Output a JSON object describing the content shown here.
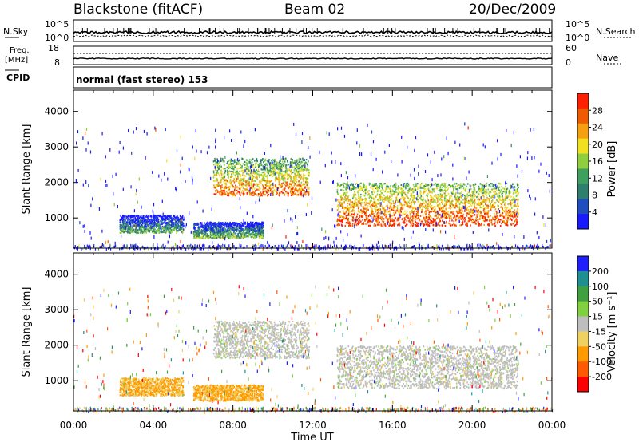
{
  "header": {
    "station": "Blackstone (fitACF)",
    "beam": "Beam 02",
    "date": "20/Dec/2009"
  },
  "nsky_panel": {
    "left_label": "N.Sky",
    "left_ticks": [
      "10^5",
      "10^0"
    ],
    "right_label": "N.Search",
    "right_ticks": [
      "10^5",
      "10^0"
    ]
  },
  "freq_panel": {
    "left_label": "Freq.",
    "left_unit": "[MHz]",
    "left_ticks": [
      "18",
      "8"
    ],
    "right_label": "Nave",
    "right_ticks": [
      "60",
      "0"
    ],
    "cpid_label": "CPID"
  },
  "cpid_text": "normal (fast stereo) 153",
  "colors": {
    "power": [
      "#1a1aff",
      "#1f4fbf",
      "#2f7f6f",
      "#3f9f5f",
      "#8fcf3f",
      "#f0e020",
      "#f5a010",
      "#f05a00",
      "#ff2000"
    ],
    "velocity": [
      "#ff0000",
      "#ff5a00",
      "#ff9a00",
      "#f0d060",
      "#bebebe",
      "#80d040",
      "#40a040",
      "#1f8f8f",
      "#2020ff"
    ]
  },
  "chart_data": [
    {
      "type": "heatmap",
      "title": "",
      "ylabel": "Slant Range [km]",
      "xlabel": "",
      "x_ticks": [
        "00:00",
        "04:00",
        "08:00",
        "12:00",
        "16:00",
        "20:00",
        "00:00"
      ],
      "y_ticks": [
        "1000",
        "2000",
        "3000",
        "4000"
      ],
      "ylim": [
        150,
        4600
      ],
      "xlim_hours": [
        0,
        24
      ],
      "colorbar": {
        "label": "Power [dB]",
        "ticks": [
          "4",
          "8",
          "12",
          "16",
          "20",
          "24",
          "28"
        ],
        "range": [
          0,
          30
        ]
      },
      "regions": [
        {
          "t0": 7.0,
          "t1": 11.8,
          "r0": 1650,
          "r1": 2700,
          "level": 0.6
        },
        {
          "t0": 13.2,
          "t1": 22.3,
          "r0": 800,
          "r1": 2000,
          "level": 0.7
        },
        {
          "t0": 2.3,
          "t1": 5.5,
          "r0": 600,
          "r1": 1100,
          "level": 0.15
        },
        {
          "t0": 6.0,
          "t1": 9.5,
          "r0": 450,
          "r1": 900,
          "level": 0.2
        }
      ]
    },
    {
      "type": "heatmap",
      "title": "",
      "ylabel": "Slant Range [km]",
      "xlabel": "Time UT",
      "x_ticks": [
        "00:00",
        "04:00",
        "08:00",
        "12:00",
        "16:00",
        "20:00",
        "00:00"
      ],
      "y_ticks": [
        "1000",
        "2000",
        "3000",
        "4000"
      ],
      "ylim": [
        150,
        4600
      ],
      "xlim_hours": [
        0,
        24
      ],
      "colorbar": {
        "label": "Velocity [m s⁻¹]",
        "ticks": [
          "200",
          "100",
          "50",
          "15",
          "-15",
          "-50",
          "-100",
          "-200"
        ],
        "range": [
          -250,
          250
        ]
      },
      "regions": [
        {
          "t0": 7.0,
          "t1": 11.8,
          "r0": 1650,
          "r1": 2700,
          "velocity": 0
        },
        {
          "t0": 13.2,
          "t1": 22.3,
          "r0": 800,
          "r1": 2000,
          "velocity": 0
        },
        {
          "t0": 2.3,
          "t1": 5.5,
          "r0": 600,
          "r1": 1100,
          "velocity": -60
        },
        {
          "t0": 6.0,
          "t1": 9.5,
          "r0": 450,
          "r1": 900,
          "velocity": -60
        }
      ]
    }
  ]
}
